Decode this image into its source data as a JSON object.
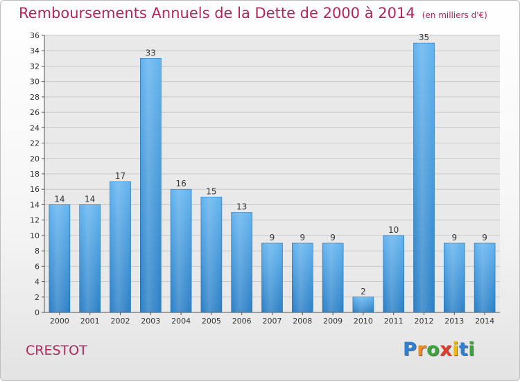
{
  "title": "Remboursements Annuels de la Dette de 2000 à 2014",
  "unit": "(en milliers d'€)",
  "commune": "CRESTOT",
  "logo": {
    "letters": [
      "P",
      "r",
      "o",
      "x",
      "i",
      "t",
      "i"
    ],
    "colors": [
      "#2f7fd0",
      "#f08a1a",
      "#3aa63a",
      "#e23b2e",
      "#f0b800",
      "#2f7fd0",
      "#3aa63a"
    ]
  },
  "colors": {
    "bar_dark": "#2a7fc6",
    "bar_light": "#62b3ef",
    "title": "#b5245a"
  },
  "chart_data": {
    "type": "bar",
    "categories": [
      "2000",
      "2001",
      "2002",
      "2003",
      "2004",
      "2005",
      "2006",
      "2007",
      "2008",
      "2009",
      "2010",
      "2011",
      "2012",
      "2013",
      "2014"
    ],
    "values": [
      14,
      14,
      17,
      33,
      16,
      15,
      13,
      9,
      9,
      9,
      2,
      10,
      35,
      9,
      9
    ],
    "ylim": [
      0,
      36
    ],
    "yticks": [
      0,
      2,
      4,
      6,
      8,
      10,
      12,
      14,
      16,
      18,
      20,
      22,
      24,
      26,
      28,
      30,
      32,
      34,
      36
    ],
    "grid": true
  }
}
